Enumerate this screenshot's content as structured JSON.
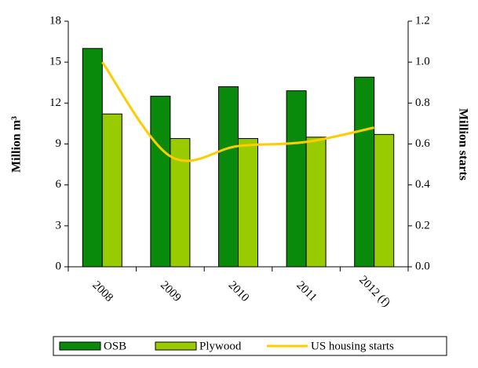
{
  "chart_data": {
    "type": "bar-line",
    "categories": [
      "2008",
      "2009",
      "2010",
      "2011",
      "2012 (f)"
    ],
    "series": [
      {
        "name": "OSB",
        "color": "#0a8a0a",
        "values": [
          16.0,
          12.5,
          13.2,
          12.9,
          13.9
        ]
      },
      {
        "name": "Plywood",
        "color": "#99cc00",
        "values": [
          11.2,
          9.4,
          9.4,
          9.5,
          9.7
        ]
      },
      {
        "name": "US housing starts",
        "color": "#ffcc00",
        "axis": "y2",
        "values": [
          1.0,
          0.54,
          0.59,
          0.61,
          0.68
        ]
      }
    ],
    "ylabel": "Million m³",
    "y2label": "Million starts",
    "ylim": [
      0,
      18
    ],
    "yticks": [
      0,
      3,
      6,
      9,
      12,
      15,
      18
    ],
    "y2lim": [
      0,
      1.2
    ],
    "y2ticks": [
      {
        "value": 0,
        "label": "0.0"
      },
      0.2,
      0.4,
      0.6,
      0.8,
      {
        "value": 1,
        "label": "1.0"
      },
      1.2
    ],
    "legend": "bottom"
  }
}
